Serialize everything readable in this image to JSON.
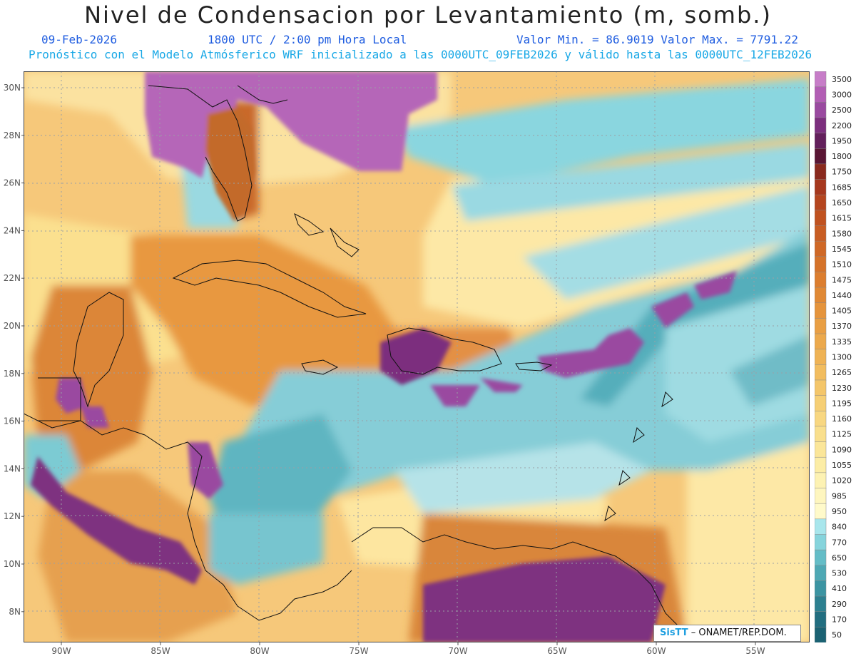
{
  "header": {
    "title": "Nivel de Condensacion por Levantamiento (m, somb.)",
    "date": "09-Feb-2026",
    "time": "1800 UTC / 2:00 pm Hora Local",
    "range": "Valor Min. = 86.9019  Valor Max. = 7791.22",
    "model_line": "Pronóstico con el Modelo Atmósferico WRF inicializado a las 0000UTC_09FEB2026 y válido hasta las  0000UTC_12FEB2026"
  },
  "map": {
    "lat_labels": [
      "30N",
      "28N",
      "26N",
      "24N",
      "22N",
      "20N",
      "18N",
      "16N",
      "14N",
      "12N",
      "10N",
      "8N"
    ],
    "lon_labels": [
      "90W",
      "85W",
      "80W",
      "75W",
      "70W",
      "65W",
      "60W",
      "55W"
    ],
    "lat_values": [
      30,
      28,
      26,
      24,
      22,
      20,
      18,
      16,
      14,
      12,
      10,
      8
    ],
    "lon_values": [
      -90,
      -85,
      -80,
      -75,
      -70,
      -65,
      -60,
      -55
    ]
  },
  "legend": {
    "labels": [
      "3500",
      "3000",
      "2500",
      "2200",
      "1950",
      "1800",
      "1750",
      "1685",
      "1650",
      "1615",
      "1580",
      "1545",
      "1510",
      "1475",
      "1440",
      "1405",
      "1370",
      "1335",
      "1300",
      "1265",
      "1230",
      "1195",
      "1160",
      "1125",
      "1090",
      "1055",
      "1020",
      "985",
      "950",
      "840",
      "770",
      "650",
      "530",
      "410",
      "290",
      "170",
      "50"
    ],
    "colors": [
      "#c77dc8",
      "#b25eb4",
      "#9a4aa0",
      "#7c2f7e",
      "#63205c",
      "#5a1634",
      "#8a2a1e",
      "#a6381e",
      "#b5461f",
      "#c05220",
      "#c85d23",
      "#cf6826",
      "#d5732a",
      "#dc7e2f",
      "#e08935",
      "#e5943c",
      "#e99f44",
      "#eca94c",
      "#efb355",
      "#f2bd5f",
      "#f4c66a",
      "#f6cf75",
      "#f8d781",
      "#f9df8d",
      "#fbe699",
      "#fcedA6",
      "#fdf2b3",
      "#fef6bf",
      "#fffaca",
      "#a8e6ec",
      "#86d4dc",
      "#64bdc7",
      "#4ea8b4",
      "#3c94a2",
      "#2d8090",
      "#226e80",
      "#1b6273"
    ]
  },
  "credit": {
    "brand": "SisTT",
    "text": " – ONAMET/REP.DOM."
  }
}
